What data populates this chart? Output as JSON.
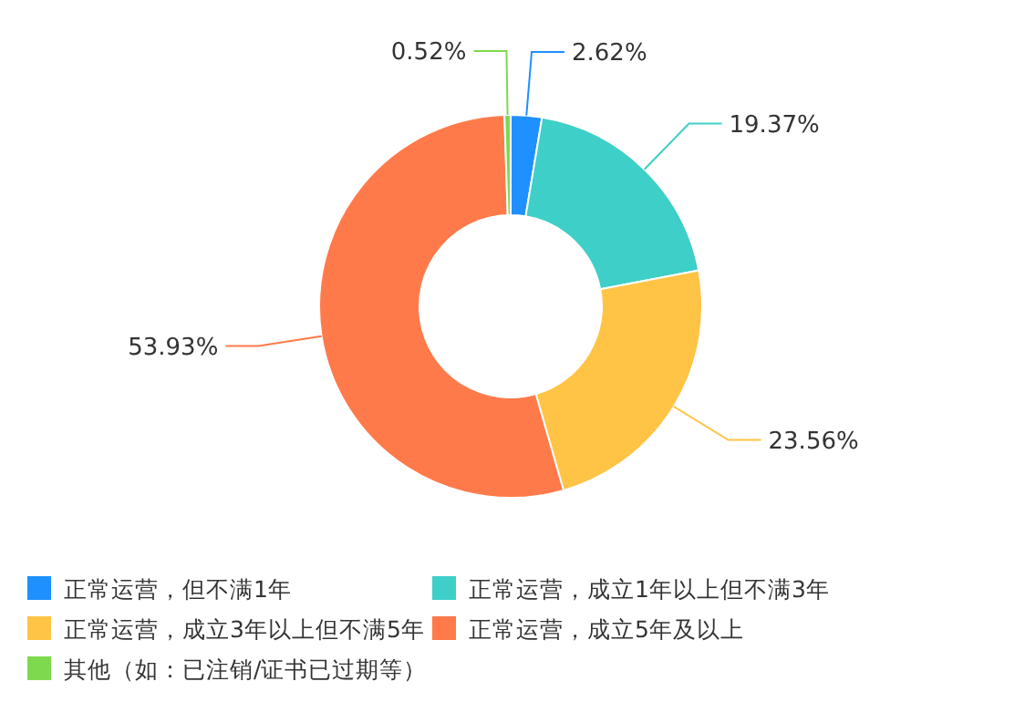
{
  "chart_data": {
    "type": "donut",
    "categories": [
      "正常运营，但不满1年",
      "正常运营，成立1年以上但不满3年",
      "正常运营，成立3年以上但不满5年",
      "正常运营，成立5年及以上",
      "其他（如：已注销/证书已过期等）"
    ],
    "values": [
      2.62,
      19.37,
      23.56,
      53.93,
      0.52
    ],
    "value_labels": [
      "2.62%",
      "19.37%",
      "23.56%",
      "53.93%",
      "0.52%"
    ],
    "colors": [
      "#1e90ff",
      "#3ecfc8",
      "#ffc445",
      "#ff7a4a",
      "#7ed94e"
    ],
    "legend": "bottom"
  }
}
